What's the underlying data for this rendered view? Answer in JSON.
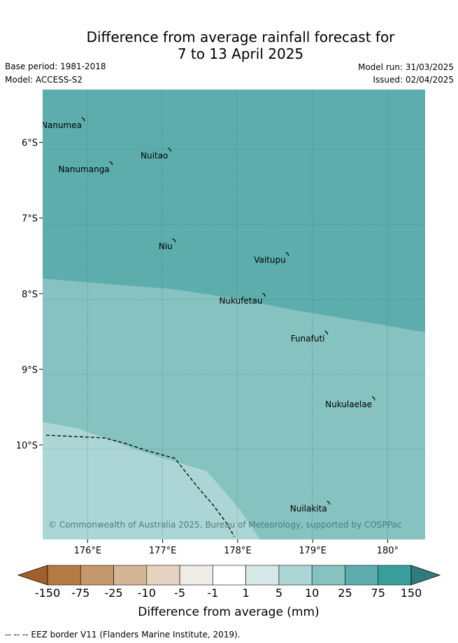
{
  "title": {
    "line1": "Difference from average rainfall forecast for",
    "line2": "7 to 13 April 2025"
  },
  "meta": {
    "base_period": "Base period: 1981-2018",
    "model": "Model: ACCESS-S2",
    "model_run": "Model run: 31/03/2025",
    "issued": "Issued: 02/04/2025"
  },
  "map": {
    "lon_range": [
      175.4,
      180.5
    ],
    "lat_range": [
      -11.25,
      -5.3
    ],
    "x_ticks": [
      {
        "lon": 176,
        "label": "176°E"
      },
      {
        "lon": 177,
        "label": "177°E"
      },
      {
        "lon": 178,
        "label": "178°E"
      },
      {
        "lon": 179,
        "label": "179°E"
      },
      {
        "lon": 180,
        "label": "180°"
      }
    ],
    "y_ticks": [
      {
        "lat": -6,
        "label": "6°S"
      },
      {
        "lat": -7,
        "label": "7°S"
      },
      {
        "lat": -8,
        "label": "8°S"
      },
      {
        "lat": -9,
        "label": "9°S"
      },
      {
        "lat": -10,
        "label": "10°S"
      }
    ],
    "islands": [
      {
        "name": "Nanumea",
        "lon": 175.95,
        "lat": -5.7
      },
      {
        "name": "Nuitao",
        "lon": 177.1,
        "lat": -6.1
      },
      {
        "name": "Nanumanga",
        "lon": 176.32,
        "lat": -6.28
      },
      {
        "name": "Niu",
        "lon": 177.16,
        "lat": -7.3
      },
      {
        "name": "Vaitupu",
        "lon": 178.67,
        "lat": -7.48
      },
      {
        "name": "Nukufetau",
        "lon": 178.36,
        "lat": -8.02
      },
      {
        "name": "Funafuti",
        "lon": 179.19,
        "lat": -8.52
      },
      {
        "name": "Nukulaelae",
        "lon": 179.82,
        "lat": -9.39
      },
      {
        "name": "Nuilakita",
        "lon": 179.22,
        "lat": -10.77
      }
    ],
    "copyright": "© Commonwealth of Australia 2025, Bureau of Meteorology, supported by COSPPac"
  },
  "colorbar": {
    "ticks": [
      "-150",
      "-75",
      "-25",
      "-10",
      "-5",
      "-1",
      "1",
      "5",
      "10",
      "25",
      "75",
      "150"
    ],
    "colors": [
      "#a0622a",
      "#b57b44",
      "#c5976d",
      "#d6b595",
      "#e7d3c1",
      "#efebe6",
      "#ffffff",
      "#d6e9e8",
      "#acd6d5",
      "#85c2c0",
      "#5dadad",
      "#389f9d",
      "#2f7c7c"
    ],
    "label": "Difference from average (mm)"
  },
  "footer": "--  --  -- EEZ border V11 (Flanders Marine Institute, 2019)."
}
